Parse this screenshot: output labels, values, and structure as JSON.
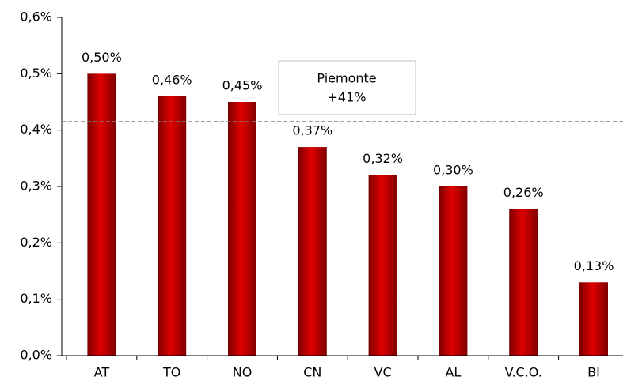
{
  "chart_data": {
    "type": "bar",
    "categories": [
      "AT",
      "TO",
      "NO",
      "CN",
      "VC",
      "AL",
      "V.C.O.",
      "BI"
    ],
    "values": [
      0.5,
      0.46,
      0.45,
      0.37,
      0.32,
      0.3,
      0.26,
      0.13
    ],
    "value_labels": [
      "0,50%",
      "0,46%",
      "0,45%",
      "0,37%",
      "0,32%",
      "0,30%",
      "0,26%",
      "0,13%"
    ],
    "color": "#c00000",
    "ylim": [
      0,
      0.6
    ],
    "yticks": [
      {
        "value": 0,
        "label": "0,0%"
      },
      {
        "value": 0.1,
        "label": "0,1%"
      },
      {
        "value": 0.2,
        "label": "0,2%"
      },
      {
        "value": 0.3,
        "label": "0,3%"
      },
      {
        "value": 0.4,
        "label": "0,4%"
      },
      {
        "value": 0.5,
        "label": "0,5%"
      },
      {
        "value": 0.6,
        "label": "0,6%"
      }
    ],
    "reference_line": 0.415,
    "annotation": [
      "Piemonte",
      "+41%"
    ]
  }
}
